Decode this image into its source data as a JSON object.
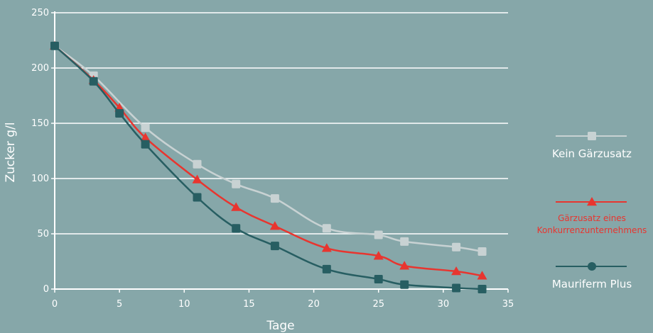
{
  "chart_data": {
    "type": "line",
    "xlabel": "Tage",
    "ylabel": "Zucker g/l",
    "xlim": [
      0,
      35
    ],
    "ylim": [
      0,
      250
    ],
    "xticks": [
      0,
      5,
      10,
      15,
      20,
      25,
      30,
      35
    ],
    "yticks": [
      0,
      50,
      100,
      150,
      200,
      250
    ],
    "grid": "horizontal",
    "legend_position": "right",
    "series": [
      {
        "name": "Kein Gärzusatz",
        "name_lines": [
          "Kein Gärzusatz"
        ],
        "color": "#c8d2d3",
        "marker": "square",
        "points": [
          [
            0,
            220
          ],
          [
            3,
            193
          ],
          [
            7,
            146
          ],
          [
            11,
            113
          ],
          [
            14,
            95
          ],
          [
            17,
            82
          ],
          [
            21,
            55
          ],
          [
            25,
            49
          ],
          [
            27,
            43
          ],
          [
            31,
            38
          ],
          [
            33,
            34
          ]
        ]
      },
      {
        "name": "Gärzusatz eines Konkurrenzunternehmens",
        "name_lines": [
          "Gärzusatz eines",
          "Konkurrenzunternehmens"
        ],
        "color": "#e8352f",
        "marker": "triangle",
        "points": [
          [
            0,
            220
          ],
          [
            3,
            189
          ],
          [
            5,
            164
          ],
          [
            7,
            137
          ],
          [
            11,
            99
          ],
          [
            14,
            74
          ],
          [
            17,
            57
          ],
          [
            21,
            37
          ],
          [
            25,
            30
          ],
          [
            27,
            21
          ],
          [
            31,
            16
          ],
          [
            33,
            12
          ]
        ]
      },
      {
        "name": "Mauriferm Plus",
        "name_lines": [
          "Mauriferm Plus"
        ],
        "color": "#275e62",
        "marker": "circle",
        "points": [
          [
            0,
            220
          ],
          [
            3,
            188
          ],
          [
            5,
            159
          ],
          [
            7,
            131
          ],
          [
            11,
            83
          ],
          [
            14,
            55
          ],
          [
            17,
            39
          ],
          [
            21,
            18
          ],
          [
            25,
            9
          ],
          [
            27,
            4
          ],
          [
            31,
            1
          ],
          [
            33,
            0
          ]
        ]
      }
    ]
  }
}
